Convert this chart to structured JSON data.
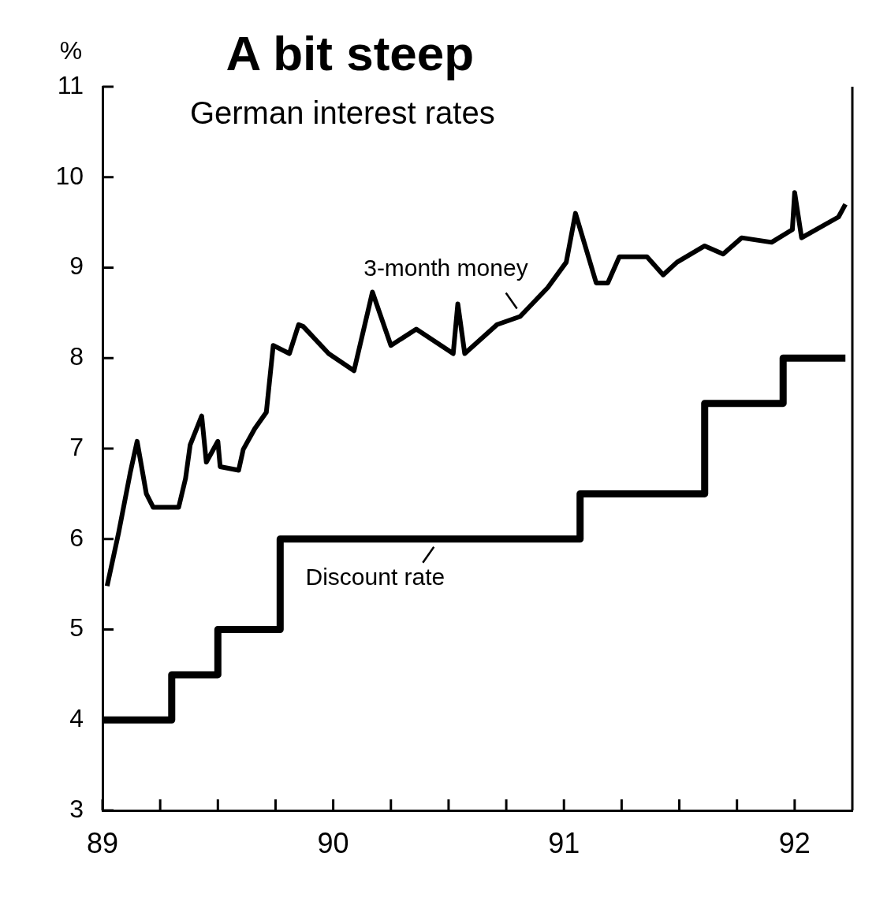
{
  "chart_data": {
    "type": "line",
    "title": "A bit steep",
    "subtitle": "German interest rates",
    "ylabel": "%",
    "xlim": [
      89,
      92.25
    ],
    "xticks": [
      89,
      {
        "value": 89.25,
        "label": null
      },
      {
        "value": 89.5,
        "label": null
      },
      {
        "value": 89.75,
        "label": null
      },
      90,
      {
        "value": 90.25,
        "label": null
      },
      {
        "value": 90.5,
        "label": null
      },
      {
        "value": 90.75,
        "label": null
      },
      91,
      {
        "value": 91.25,
        "label": null
      },
      {
        "value": 91.5,
        "label": null
      },
      {
        "value": 91.75,
        "label": null
      },
      92
    ],
    "ylim": [
      3,
      11
    ],
    "yticks": [
      3,
      4,
      5,
      6,
      7,
      8,
      9,
      10,
      11
    ],
    "marker": "none",
    "series": [
      {
        "type": "line",
        "color": "#000000",
        "x": [
          89.02,
          89.07,
          89.12,
          89.15,
          89.19,
          89.22,
          89.33,
          89.36,
          89.38,
          89.43,
          89.45,
          89.5,
          89.51,
          89.59,
          89.61,
          89.66,
          89.71,
          89.74,
          89.81,
          89.85,
          89.87,
          89.98,
          90.09,
          90.17,
          90.25,
          90.36,
          90.52,
          90.54,
          90.57,
          90.71,
          90.81,
          90.93,
          91.01,
          91.05,
          91.14,
          91.19,
          91.24,
          91.36,
          91.43,
          91.49,
          91.61,
          91.69,
          91.77,
          91.9,
          91.99,
          92,
          92.03,
          92.19,
          92.22
        ],
        "values": [
          5.48,
          6.07,
          6.73,
          7.08,
          6.5,
          6.35,
          6.35,
          6.67,
          7.04,
          7.36,
          6.85,
          7.08,
          6.8,
          6.76,
          6.99,
          7.22,
          7.4,
          8.14,
          8.05,
          8.37,
          8.35,
          8.05,
          7.86,
          8.73,
          8.14,
          8.32,
          8.05,
          8.6,
          8.05,
          8.37,
          8.46,
          8.78,
          9.06,
          9.6,
          8.83,
          8.83,
          9.12,
          9.12,
          8.92,
          9.06,
          9.24,
          9.15,
          9.33,
          9.28,
          9.42,
          9.83,
          9.33,
          9.56,
          9.7
        ]
      },
      {
        "type": "step",
        "color": "#000000",
        "x": [
          89,
          89.3,
          89.5,
          89.77,
          91.07,
          91.61,
          91.95,
          92.22
        ],
        "values": [
          4,
          4.5,
          5,
          6,
          6.5,
          7.5,
          8,
          8
        ]
      }
    ],
    "annotations": [
      {
        "text": "3-month money",
        "x": 90.81,
        "y": 8.46
      },
      {
        "text": "Discount rate",
        "x": 90.45,
        "y": 6
      }
    ]
  }
}
